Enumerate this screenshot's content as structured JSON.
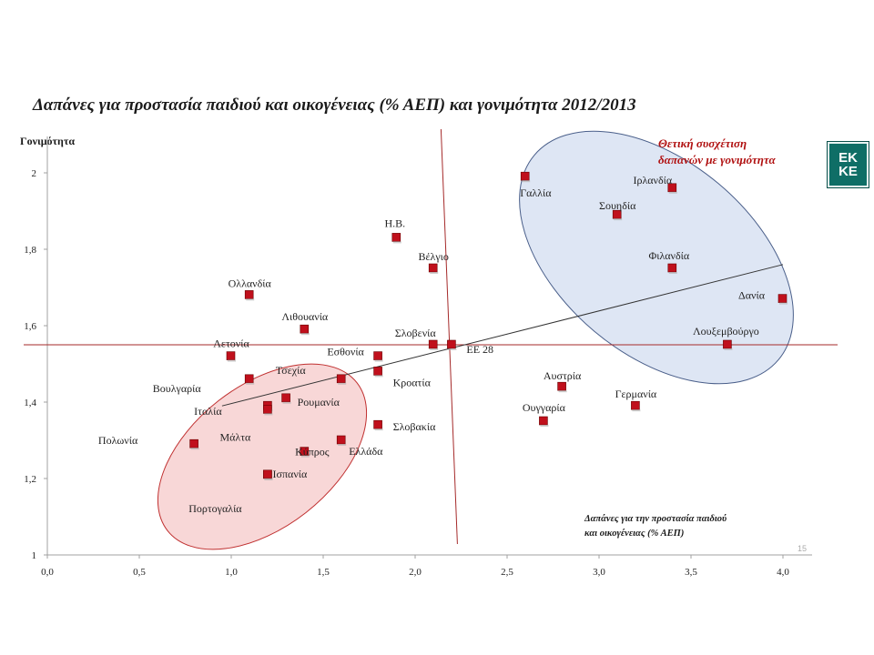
{
  "chart_data": {
    "type": "scatter",
    "title": "Δαπάνες για προστασία παιδιού και οικογένειας (% ΑΕΠ) και γονιμότητα 2012/2013",
    "ylabel": "Γονιμότητα",
    "xlabel_lines": [
      "Δαπάνες για την προστασία παιδιού",
      "και οικογένειας (% ΑΕΠ)"
    ],
    "xlim": [
      0,
      4
    ],
    "ylim": [
      1,
      2
    ],
    "x_ticks": [
      "0,0",
      "0,5",
      "1,0",
      "1,5",
      "2,0",
      "2,5",
      "3,0",
      "3,5",
      "4,0"
    ],
    "y_ticks": [
      "1",
      "1,2",
      "1,4",
      "1,6",
      "1,8",
      "2"
    ],
    "grid": false,
    "marker_color": "#c0101c",
    "reference_lines": {
      "x": 2.2,
      "y": 1.55,
      "color": "#a52a2a"
    },
    "trendline": {
      "x": [
        0.95,
        4.0
      ],
      "y": [
        1.39,
        1.76
      ],
      "color": "#333333"
    },
    "points": [
      {
        "label": "Γαλλία",
        "x": 2.6,
        "y": 1.99
      },
      {
        "label": "Ιρλανδία",
        "x": 3.4,
        "y": 1.96
      },
      {
        "label": "Σουηδία",
        "x": 3.1,
        "y": 1.89
      },
      {
        "label": "Φιλανδία",
        "x": 3.4,
        "y": 1.75
      },
      {
        "label": "Δανία",
        "x": 4.0,
        "y": 1.67
      },
      {
        "label": "Λουξεμβούργο",
        "x": 3.7,
        "y": 1.55
      },
      {
        "label": "Η.Β.",
        "x": 1.9,
        "y": 1.83
      },
      {
        "label": "Βέλγιο",
        "x": 2.1,
        "y": 1.75
      },
      {
        "label": "Ολλανδία",
        "x": 1.1,
        "y": 1.68
      },
      {
        "label": "Λιθουανία",
        "x": 1.4,
        "y": 1.59
      },
      {
        "label": "Σλοβενία",
        "x": 2.1,
        "y": 1.55
      },
      {
        "label": "ΕΕ 28",
        "x": 2.2,
        "y": 1.55
      },
      {
        "label": "Εσθονία",
        "x": 1.8,
        "y": 1.52
      },
      {
        "label": "Λετονία",
        "x": 1.0,
        "y": 1.52
      },
      {
        "label": "Τσεχία",
        "x": 1.6,
        "y": 1.46
      },
      {
        "label": "Κροατία",
        "x": 1.8,
        "y": 1.48
      },
      {
        "label": "Βουλγαρία",
        "x": 1.1,
        "y": 1.46
      },
      {
        "label": "Ιταλία",
        "x": 1.2,
        "y": 1.39
      },
      {
        "label": "Ρουμανία",
        "x": 1.3,
        "y": 1.41
      },
      {
        "label": "Μάλτα",
        "x": 1.2,
        "y": 1.38
      },
      {
        "label": "Κύπρος",
        "x": 1.4,
        "y": 1.27
      },
      {
        "label": "Σλοβακία",
        "x": 1.8,
        "y": 1.34
      },
      {
        "label": "Ελλάδα",
        "x": 1.6,
        "y": 1.3
      },
      {
        "label": "Πολωνία",
        "x": 0.8,
        "y": 1.29
      },
      {
        "label": "Ισπανία",
        "x": 1.2,
        "y": 1.21
      },
      {
        "label": "Πορτογαλία",
        "x": 1.2,
        "y": 1.21
      },
      {
        "label": "Αυστρία",
        "x": 2.8,
        "y": 1.44
      },
      {
        "label": "Ουγγαρία",
        "x": 2.7,
        "y": 1.35
      },
      {
        "label": "Γερμανία",
        "x": 3.2,
        "y": 1.39
      }
    ],
    "annotation_lines": [
      "Θετική συσχέτιση",
      "δαπανών με γονιμότητα"
    ],
    "annotation_color": "#b01010"
  },
  "logo": {
    "line1": "ΕΚ",
    "line2": "ΚΕ",
    "color": "#0f6e66"
  },
  "page_number": "15"
}
